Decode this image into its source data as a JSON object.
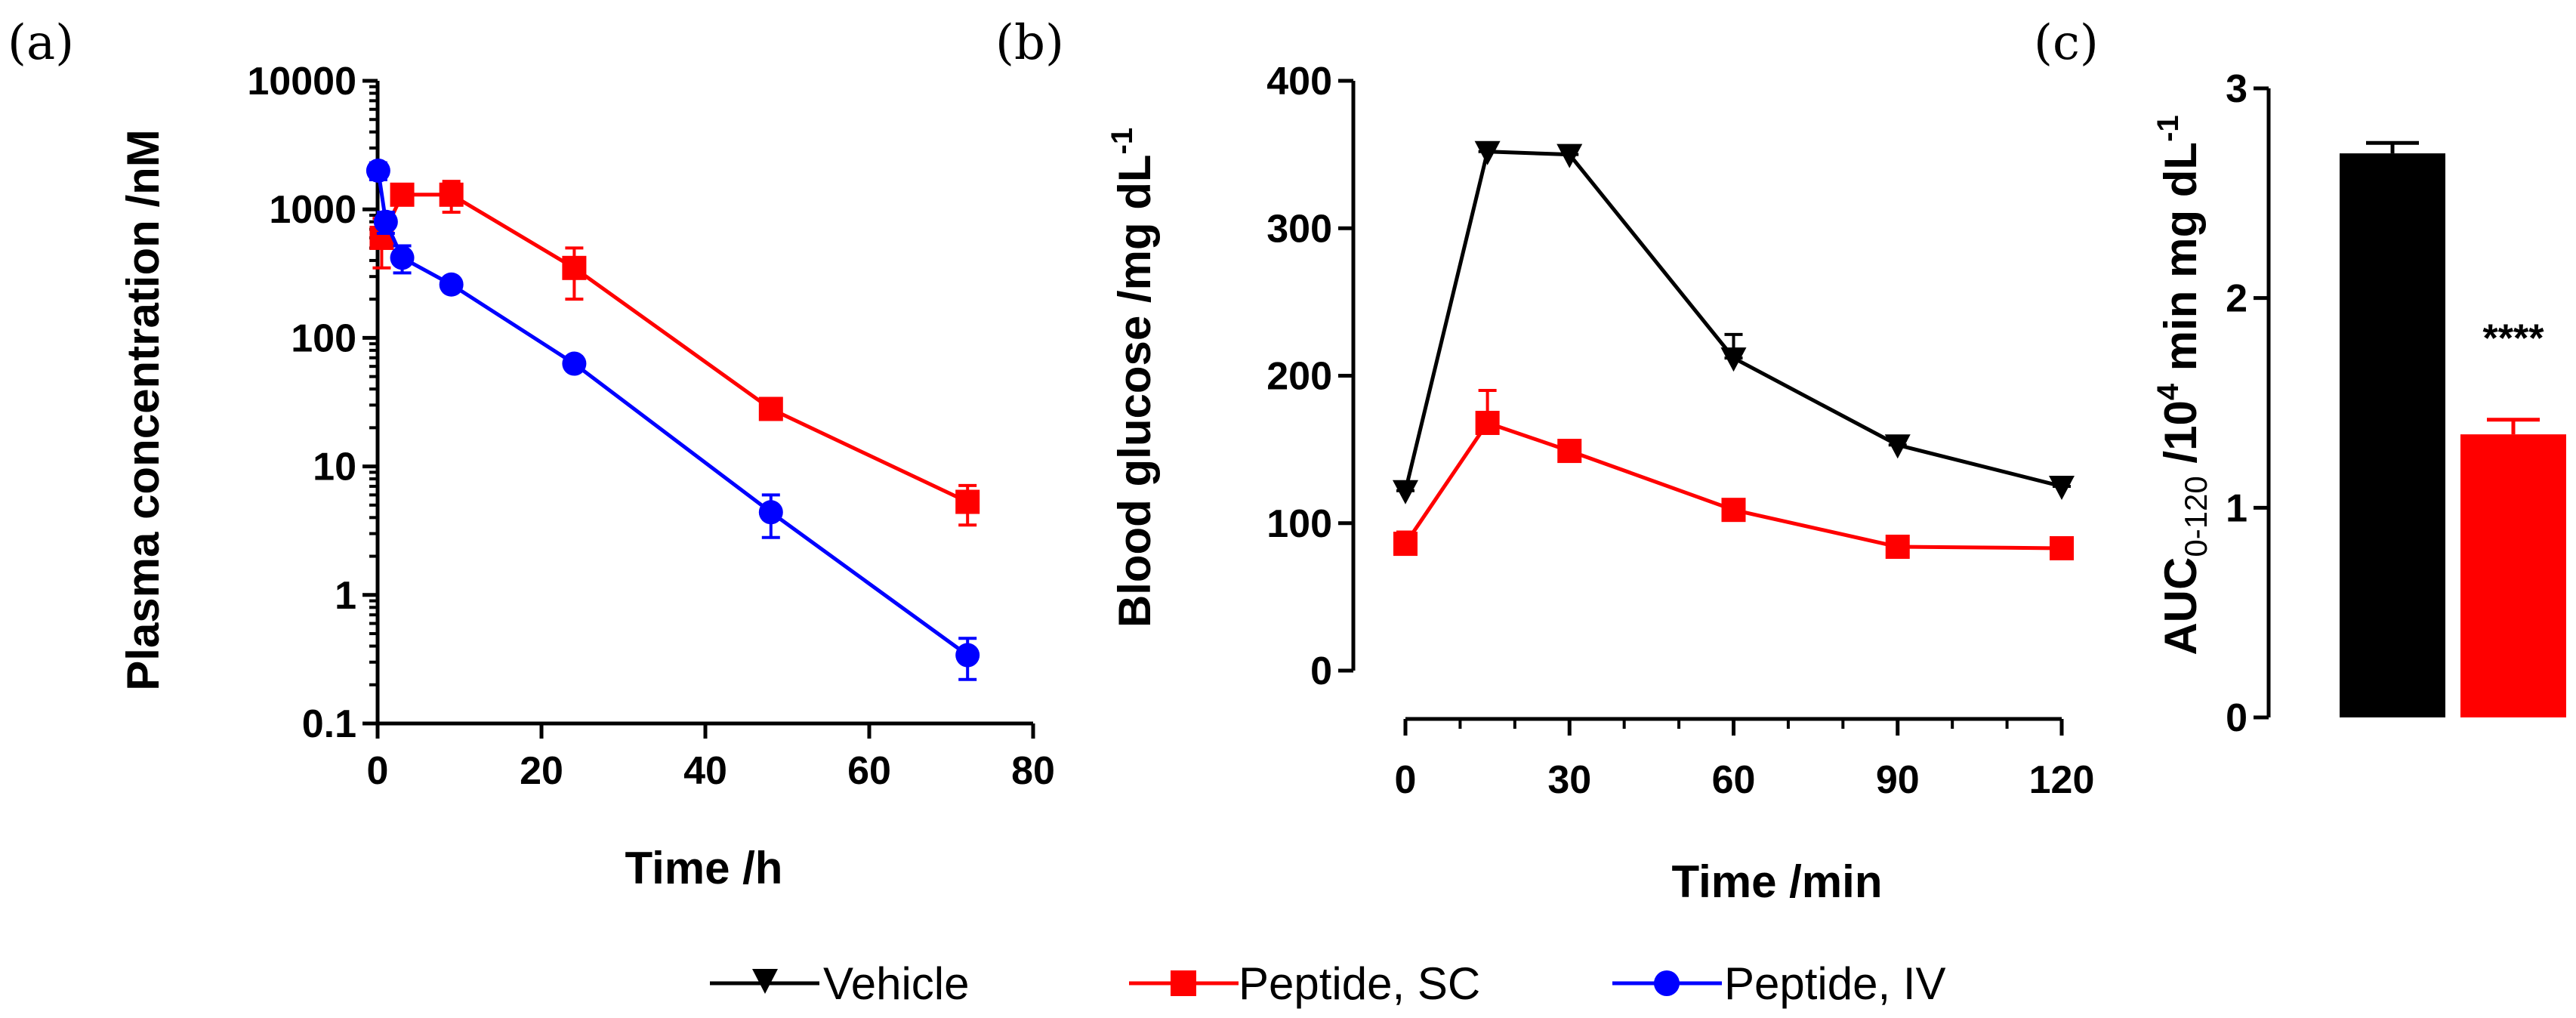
{
  "panel_labels": {
    "a": "(a)",
    "b": "(b)",
    "c": "(c)"
  },
  "colors": {
    "vehicle": "#000000",
    "sc": "#ff0000",
    "iv": "#0000ff",
    "significance": "#ff0000"
  },
  "legend": {
    "vehicle": "Vehicle",
    "sc": "Peptide, SC",
    "iv": "Peptide, IV"
  },
  "chart_data": [
    {
      "type": "line",
      "id": "a",
      "yscale": "log",
      "ylabel": "Plasma concentration /nM",
      "xlabel": "Time /h",
      "xlim": [
        0,
        80
      ],
      "ylim": [
        0.1,
        10000
      ],
      "xticks": [
        "0",
        "20",
        "40",
        "60",
        "80"
      ],
      "yticks": [
        "0.1",
        "1",
        "10",
        "100",
        "1000",
        "10000"
      ],
      "series": [
        {
          "name": "Peptide, SC",
          "color": "#ff0000",
          "marker": "square",
          "x": [
            0.5,
            3,
            9,
            24,
            48,
            72
          ],
          "y": [
            600,
            1300,
            1300,
            350,
            28,
            5.3
          ],
          "err": [
            250,
            100,
            350,
            150,
            2,
            1.8
          ]
        },
        {
          "name": "Peptide, IV",
          "color": "#0000ff",
          "marker": "circle",
          "x": [
            0.08,
            1,
            3,
            9,
            24,
            48,
            72
          ],
          "y": [
            2000,
            800,
            420,
            260,
            63,
            4.4,
            0.34
          ],
          "err": [
            300,
            150,
            100,
            20,
            4,
            1.6,
            0.12
          ]
        }
      ]
    },
    {
      "type": "line",
      "id": "b",
      "ylabel": "Blood glucose /mg dL",
      "ylabel_sup": "-1",
      "xlabel": "Time /min",
      "xlim": [
        0,
        120
      ],
      "ylim": [
        0,
        400
      ],
      "xticks": [
        "0",
        "30",
        "60",
        "90",
        "120"
      ],
      "yticks": [
        "0",
        "100",
        "200",
        "300",
        "400"
      ],
      "series": [
        {
          "name": "Vehicle",
          "color": "#000000",
          "marker": "triangle-down",
          "x": [
            0,
            15,
            30,
            60,
            90,
            120
          ],
          "y": [
            122,
            352,
            350,
            212,
            153,
            125
          ],
          "err": [
            6,
            5,
            4,
            16,
            3,
            3
          ]
        },
        {
          "name": "Peptide, SC",
          "color": "#ff0000",
          "marker": "square",
          "x": [
            0,
            15,
            30,
            60,
            90,
            120
          ],
          "y": [
            86,
            168,
            149,
            109,
            84,
            83
          ],
          "err": [
            8,
            22,
            4,
            3,
            2,
            2
          ]
        }
      ]
    },
    {
      "type": "bar",
      "id": "c",
      "ylabel_main": "AUC",
      "ylabel_sub": "0-120",
      "ylabel_mid": " /10",
      "ylabel_exp": "4",
      "ylabel_rest": " min mg dL",
      "ylabel_sup": "-1",
      "ylim": [
        0,
        3
      ],
      "yticks": [
        "0",
        "1",
        "2",
        "3"
      ],
      "categories": [
        "Vehicle",
        "Peptide, SC"
      ],
      "values": [
        2.69,
        1.35
      ],
      "err": [
        0.05,
        0.07
      ],
      "colors": [
        "#000000",
        "#ff0000"
      ],
      "annotation": "****"
    }
  ]
}
